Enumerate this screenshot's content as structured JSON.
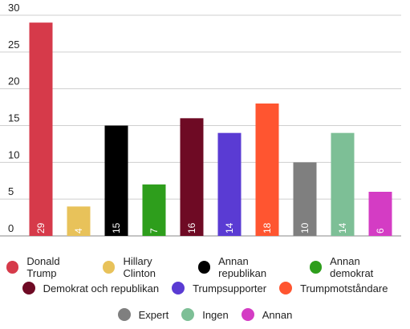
{
  "chart_data": {
    "type": "bar",
    "categories": [
      "Donald Trump",
      "Hillary Clinton",
      "Annan republikan",
      "Annan demokrat",
      "Demokrat och republikan",
      "Trumpsupporter",
      "Trumpmotståndare",
      "Expert",
      "Ingen",
      "Annan"
    ],
    "values": [
      29,
      4,
      15,
      7,
      16,
      14,
      18,
      10,
      14,
      6
    ],
    "colors": [
      "#d63a4a",
      "#e8c25a",
      "#000000",
      "#2e9e1c",
      "#6e0a24",
      "#5a3bd3",
      "#ff5530",
      "#7f7f7f",
      "#7dbf96",
      "#d43cc4"
    ],
    "y_ticks": [
      "0",
      "5",
      "10",
      "15",
      "20",
      "25",
      "30"
    ],
    "ylim": [
      0,
      30
    ],
    "grid": true,
    "legend_position": "bottom",
    "title": "",
    "xlabel": "",
    "ylabel": ""
  }
}
